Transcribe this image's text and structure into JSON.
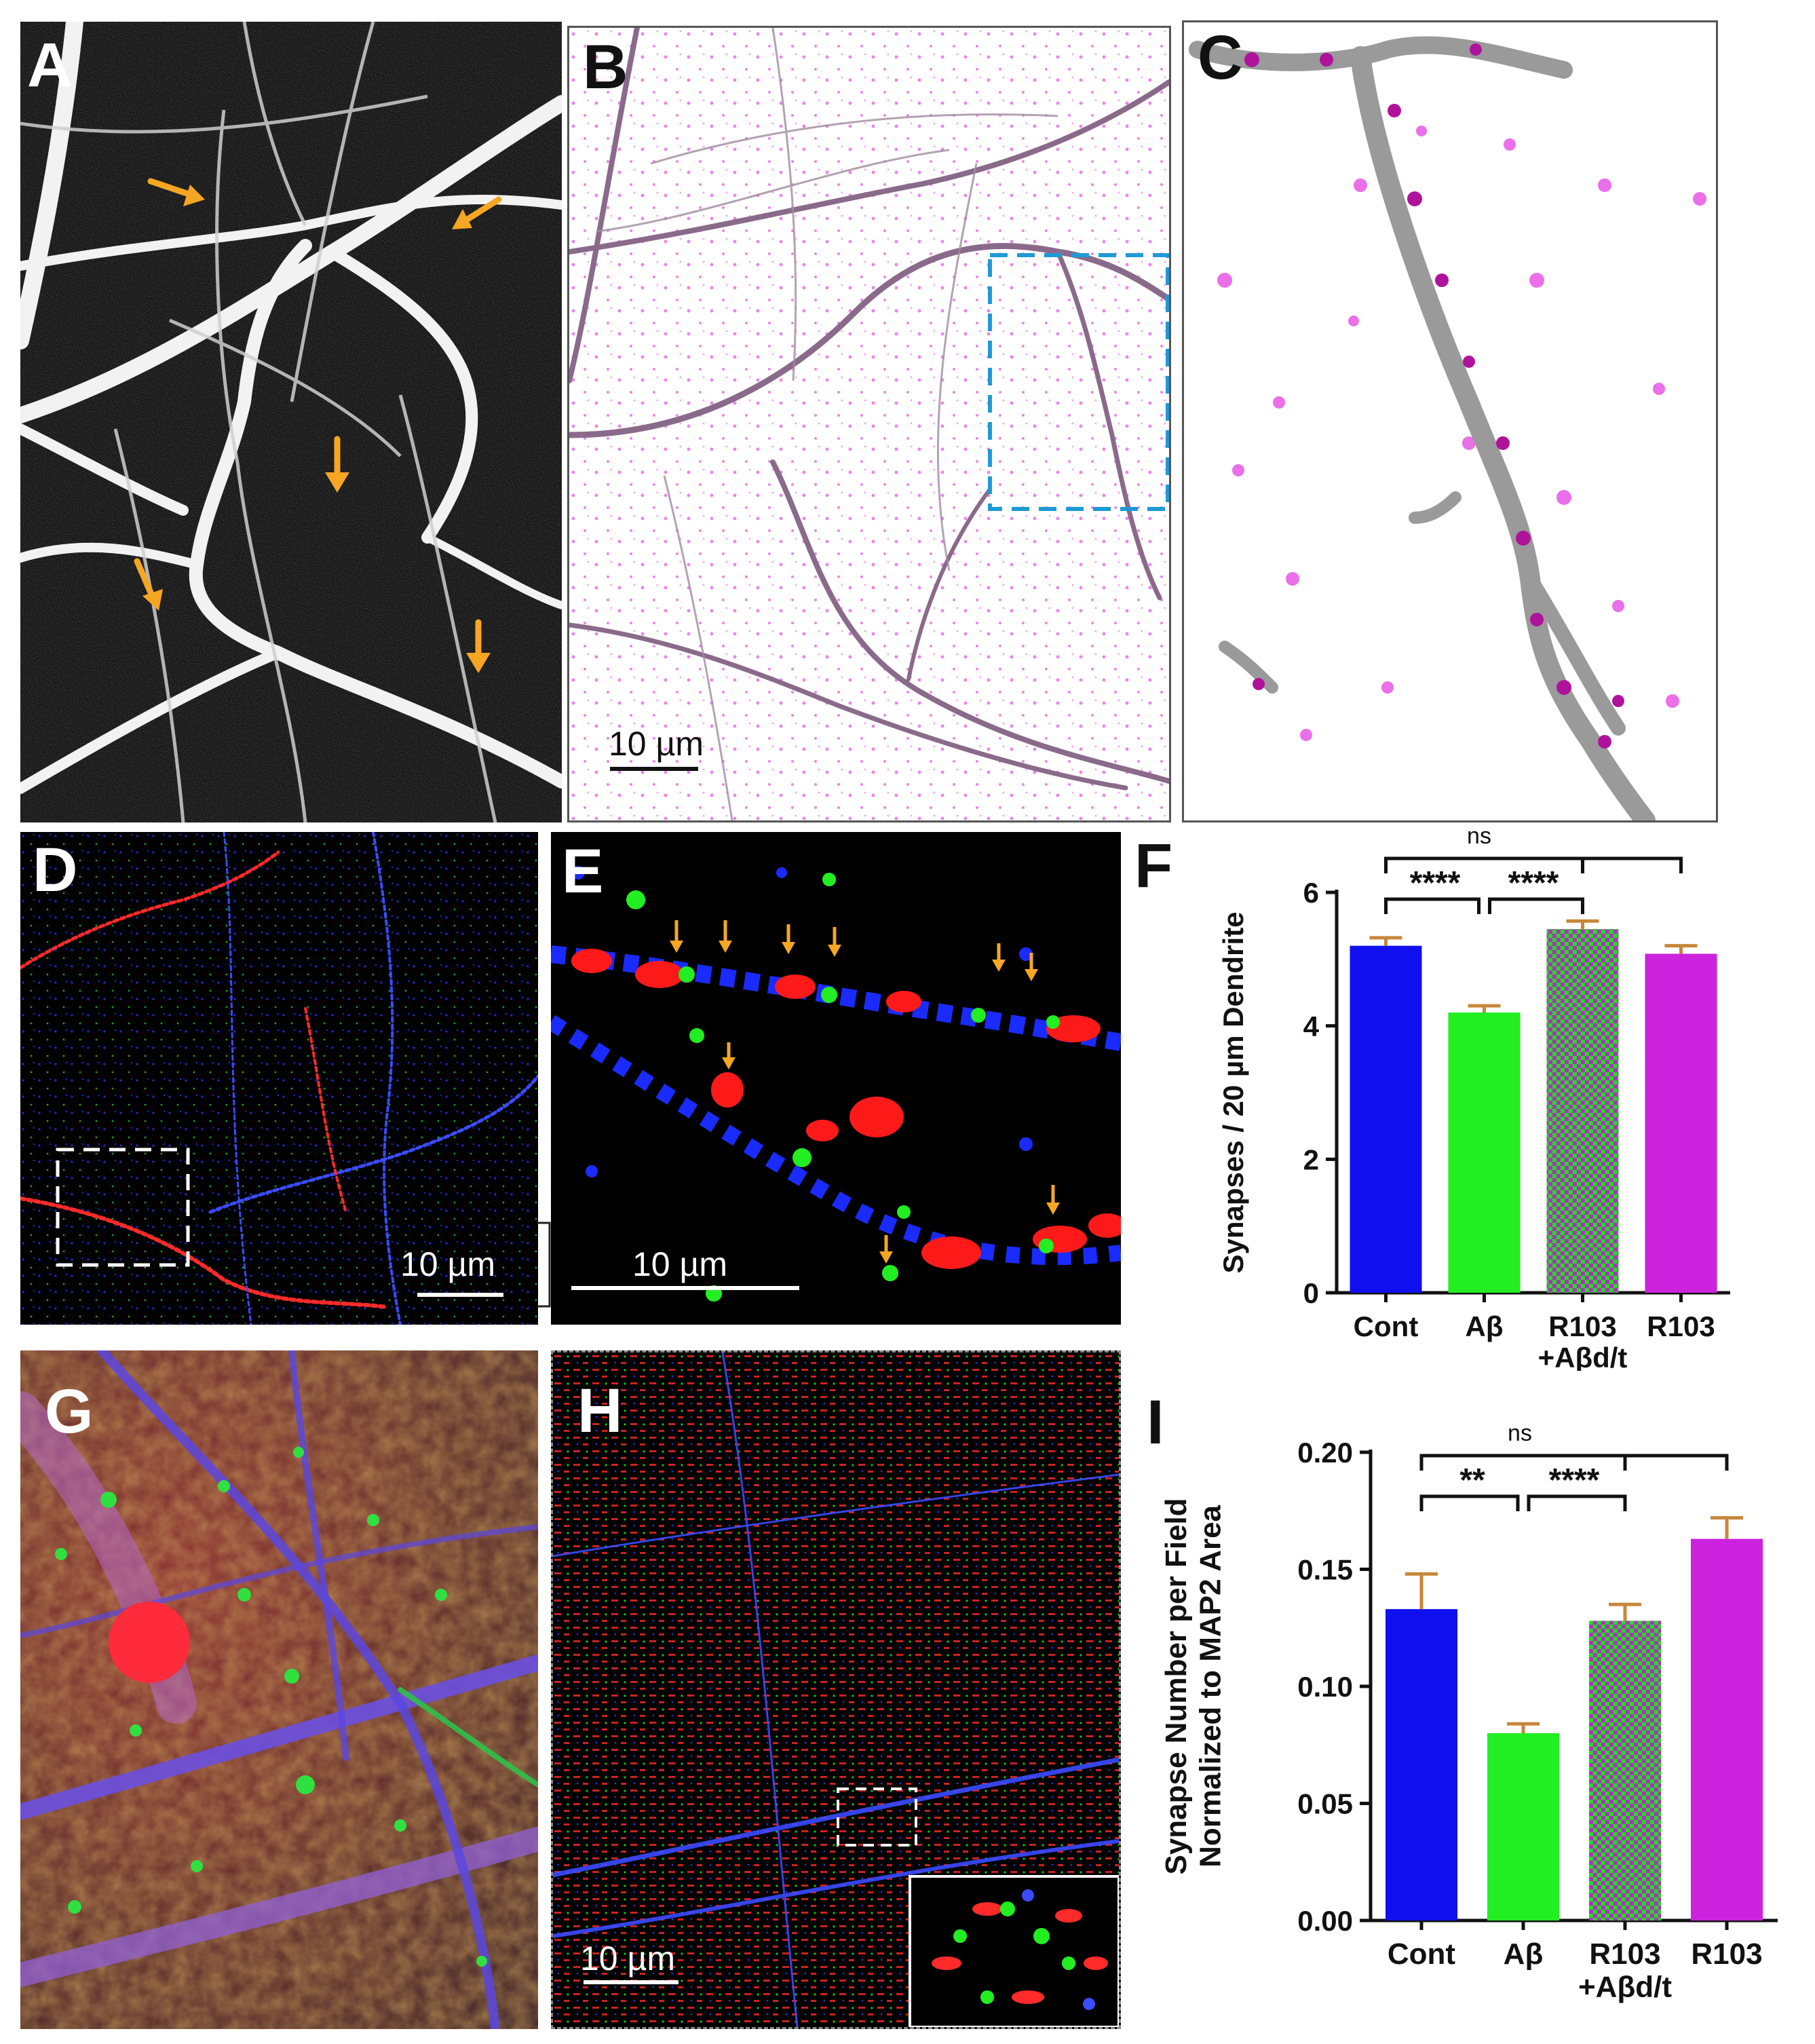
{
  "figure": {
    "panel_labels": {
      "A": "A",
      "B": "B",
      "C": "C",
      "D": "D",
      "E": "E",
      "F": "F",
      "G": "G",
      "H": "H",
      "I": "I"
    },
    "scale_bars": {
      "B": "10 µm",
      "D": "10 µm",
      "E": "10 µm",
      "H": "10 µm"
    },
    "colors": {
      "arrow": "#f5a623",
      "roi_blue": "#1e9ad6",
      "roi_white": "#ffffff",
      "dendrite_gray": "#9a9a9a",
      "synapse_magenta": "#e040e0",
      "cont": "#1010ee",
      "abeta": "#22ee22",
      "r103_abeta_a": "#22dd22",
      "r103_abeta_b": "#b030c0",
      "r103": "#cc22dd",
      "error_bar": "#c8873a"
    }
  },
  "chart_data": [
    {
      "panel": "F",
      "type": "bar",
      "categories": [
        "Cont",
        "Aβ",
        "R103\n+Aβd/t",
        "R103"
      ],
      "category_lines": [
        [
          "Cont"
        ],
        [
          "Aβ"
        ],
        [
          "R103",
          "+Aβd/t"
        ],
        [
          "R103"
        ]
      ],
      "values": [
        5.2,
        4.2,
        5.45,
        5.08
      ],
      "errors": [
        0.12,
        0.1,
        0.12,
        0.12
      ],
      "ylabel": "Synapses / 20 µm Dendrite",
      "ylim": [
        0,
        6
      ],
      "yticks": [
        0,
        2,
        4,
        6
      ],
      "ytick_labels": [
        "0",
        "2",
        "4",
        "6"
      ],
      "significance": [
        {
          "from": 0,
          "to": 1,
          "label": "****",
          "level": 1
        },
        {
          "from": 1,
          "to": 2,
          "label": "****",
          "level": 1
        },
        {
          "from": 0,
          "to": 3,
          "label": "ns",
          "level": 2,
          "mid_tick": 2
        }
      ]
    },
    {
      "panel": "I",
      "type": "bar",
      "categories": [
        "Cont",
        "Aβ",
        "R103\n+Aβd/t",
        "R103"
      ],
      "category_lines": [
        [
          "Cont"
        ],
        [
          "Aβ"
        ],
        [
          "R103",
          "+Aβd/t"
        ],
        [
          "R103"
        ]
      ],
      "values": [
        0.133,
        0.08,
        0.128,
        0.163
      ],
      "errors": [
        0.015,
        0.004,
        0.007,
        0.009
      ],
      "ylabel_lines": [
        "Synapse Number per Field",
        "Normalized to MAP2 Area"
      ],
      "ylim": [
        0,
        0.2
      ],
      "yticks": [
        0,
        0.05,
        0.1,
        0.15,
        0.2
      ],
      "ytick_labels": [
        "0.00",
        "0.05",
        "0.10",
        "0.15",
        "0.20"
      ],
      "significance": [
        {
          "from": 0,
          "to": 1,
          "label": "**",
          "level": 1
        },
        {
          "from": 1,
          "to": 2,
          "label": "****",
          "level": 1
        },
        {
          "from": 0,
          "to": 3,
          "label": "ns",
          "level": 2,
          "mid_tick": 2
        }
      ]
    }
  ]
}
